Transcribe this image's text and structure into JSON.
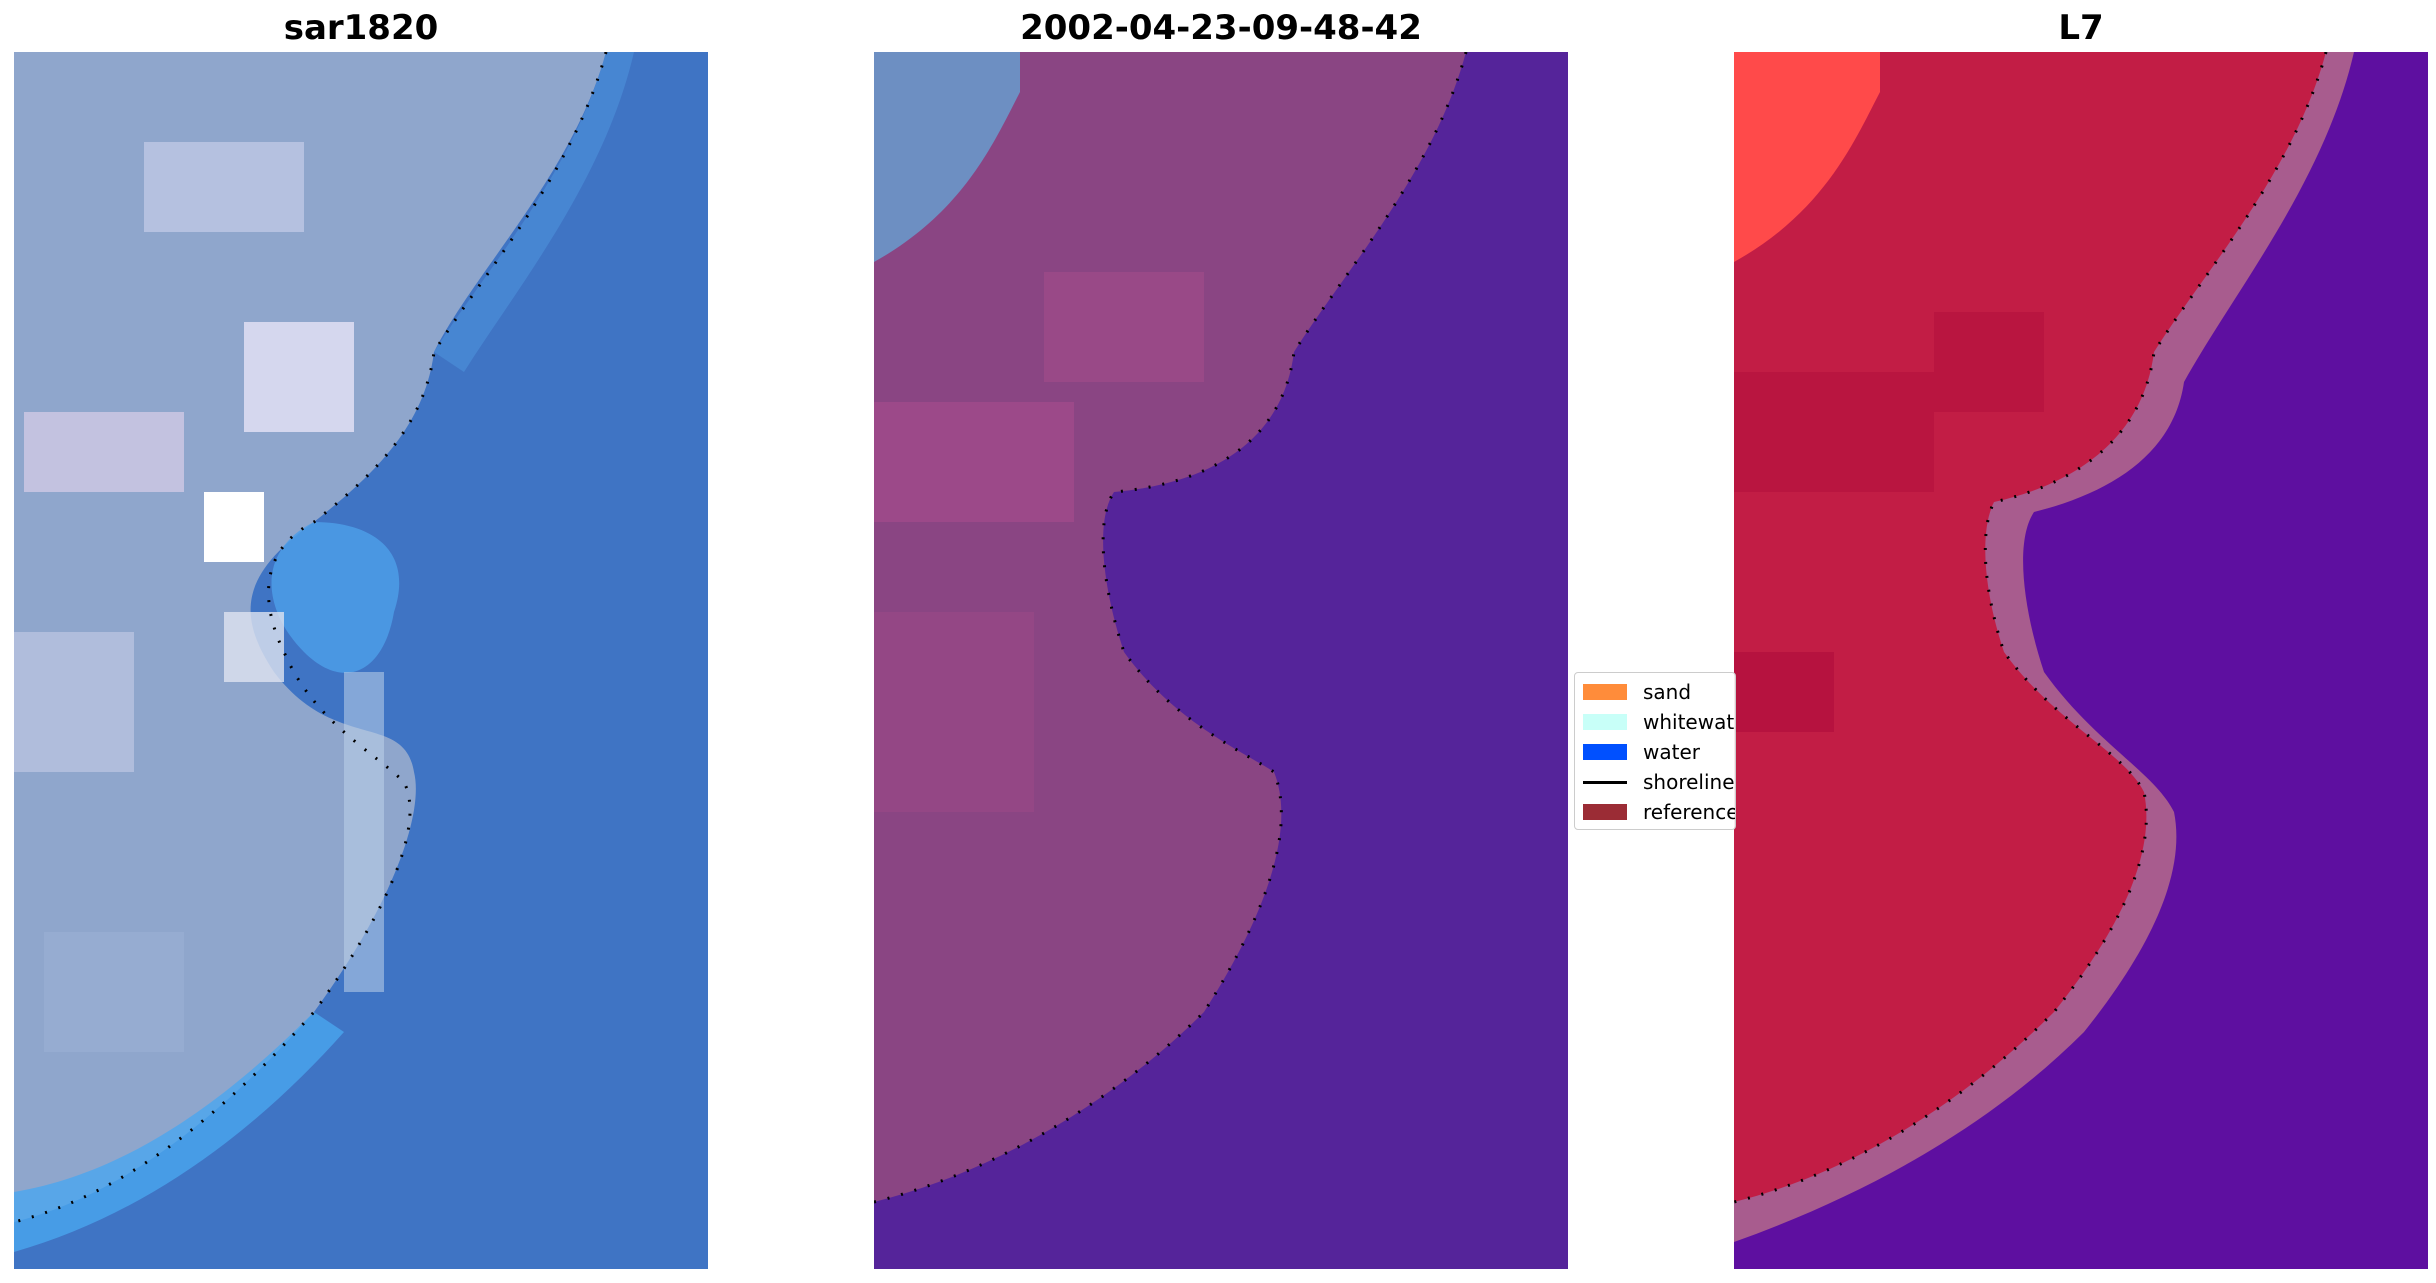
{
  "panels": [
    {
      "title": "sar1820"
    },
    {
      "title": "2002-04-23-09-48-42"
    },
    {
      "title": "L7"
    }
  ],
  "legend": {
    "items": [
      {
        "label": "sand",
        "color": "#ff8c3a",
        "kind": "patch"
      },
      {
        "label": "whitewater",
        "color": "#c8fff8",
        "kind": "patch"
      },
      {
        "label": "water",
        "color": "#0050ff",
        "kind": "patch"
      },
      {
        "label": "shoreline",
        "color": "#000000",
        "kind": "line"
      },
      {
        "label": "reference",
        "color": "#9b2c35",
        "kind": "patch"
      }
    ]
  },
  "colors": {
    "rgb_land": "#8fa8cf",
    "rgb_water": "#3f74c4",
    "rgb_nearshore": "#4a9ee8",
    "classified_land": "#8a4583",
    "classified_water": "#55249a",
    "mndwi_land": "#c21d45",
    "mndwi_water": "#5e0fa0",
    "shoreline_dots": "#000000"
  }
}
